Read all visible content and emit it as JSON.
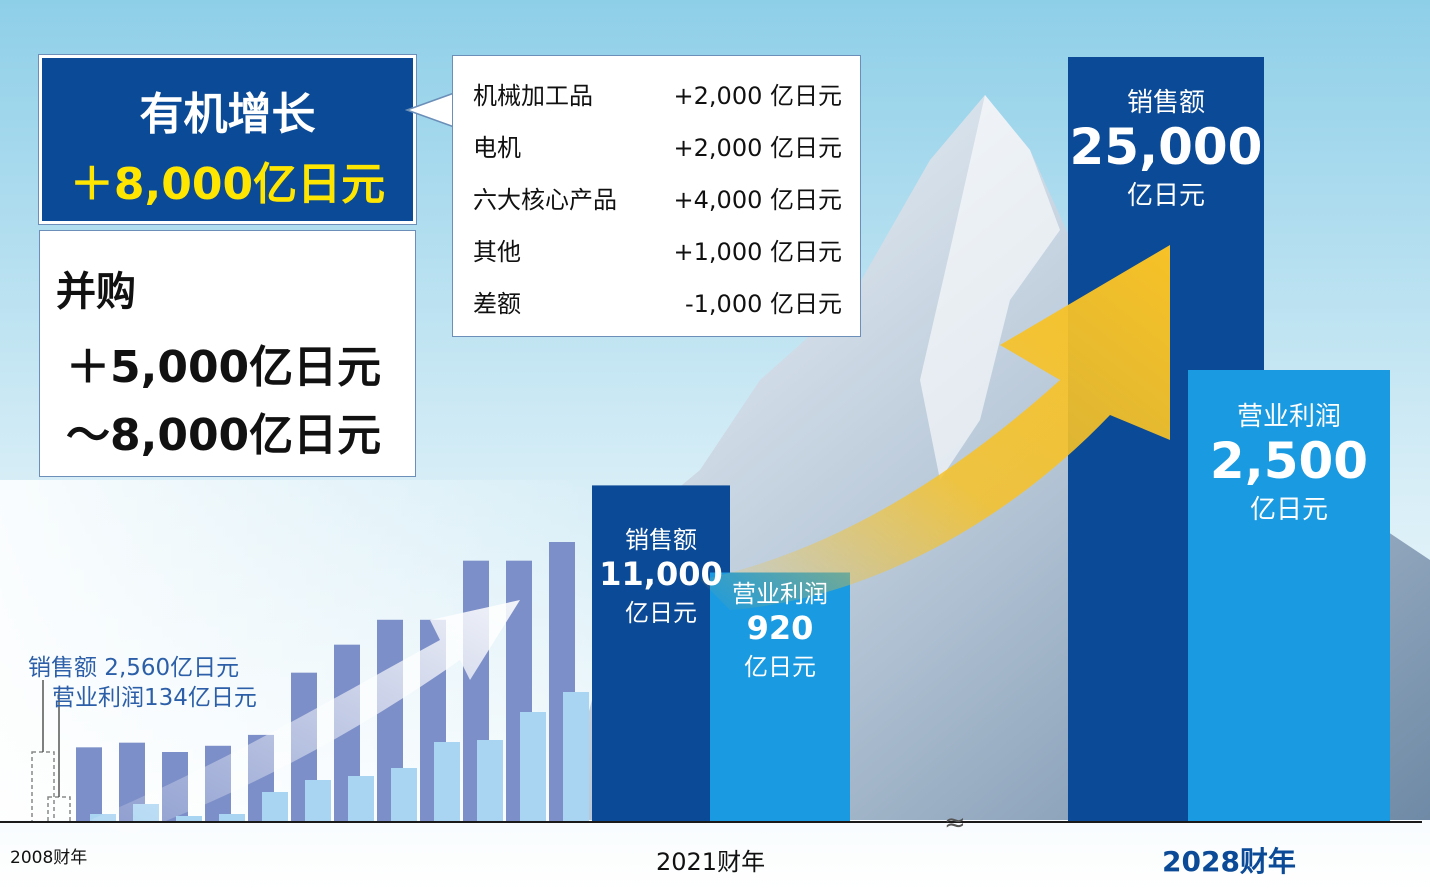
{
  "colors": {
    "sales_dark": "#0b4a96",
    "profit_light": "#1a9ae0",
    "hist_sales": "#7d8fc8",
    "hist_profit": "#a9d4f2",
    "arrow": "#f7c227",
    "organic_box": "#0b4a96",
    "highlight_text": "#ffe600"
  },
  "organic": {
    "title": "有机增长",
    "value": "＋8,000亿日元"
  },
  "ma": {
    "title": "并购",
    "line1": "＋5,000亿日元",
    "line2": "～8,000亿日元"
  },
  "breakdown": [
    {
      "label": "机械加工品",
      "value": "+2,000 亿日元"
    },
    {
      "label": "电机",
      "value": "+2,000 亿日元"
    },
    {
      "label": "六大核心产品",
      "value": "+4,000 亿日元"
    },
    {
      "label": "其他",
      "value": "+1,000 亿日元"
    },
    {
      "label": "差额",
      "value": "-1,000 亿日元"
    }
  ],
  "history_note": {
    "sales": "销售额 2,560亿日元",
    "profit": "营业利润134亿日元"
  },
  "bars": {
    "fy2021_sales": {
      "title": "销售额",
      "value": "11,000",
      "unit": "亿日元"
    },
    "fy2021_profit": {
      "title": "营业利润",
      "value": "920",
      "unit": "亿日元"
    },
    "fy2028_sales": {
      "title": "销售额",
      "value": "25,000",
      "unit": "亿日元"
    },
    "fy2028_profit": {
      "title": "营业利润",
      "value": "2,500",
      "unit": "亿日元"
    }
  },
  "axis": {
    "start": "2008财年",
    "mid": "2021财年",
    "end": "2028财年",
    "break_mark": "≈"
  },
  "chart_data": {
    "type": "bar",
    "categories": [
      "2008财年",
      "",
      "",
      "",
      "",
      "",
      "",
      "",
      "",
      "",
      "",
      "",
      "",
      "2021财年",
      "2028财年"
    ],
    "series": [
      {
        "name": "销售额",
        "values": [
          2560,
          2400,
          2550,
          2250,
          2450,
          2800,
          4800,
          5700,
          6500,
          6500,
          8400,
          8400,
          9000,
          11000,
          25000
        ]
      },
      {
        "name": "营业利润",
        "values": [
          134,
          80,
          180,
          60,
          80,
          300,
          420,
          460,
          540,
          800,
          820,
          1100,
          1300,
          920,
          2500
        ]
      }
    ],
    "ylim": [
      0,
      25000
    ],
    "legend": "none",
    "grid": false
  }
}
